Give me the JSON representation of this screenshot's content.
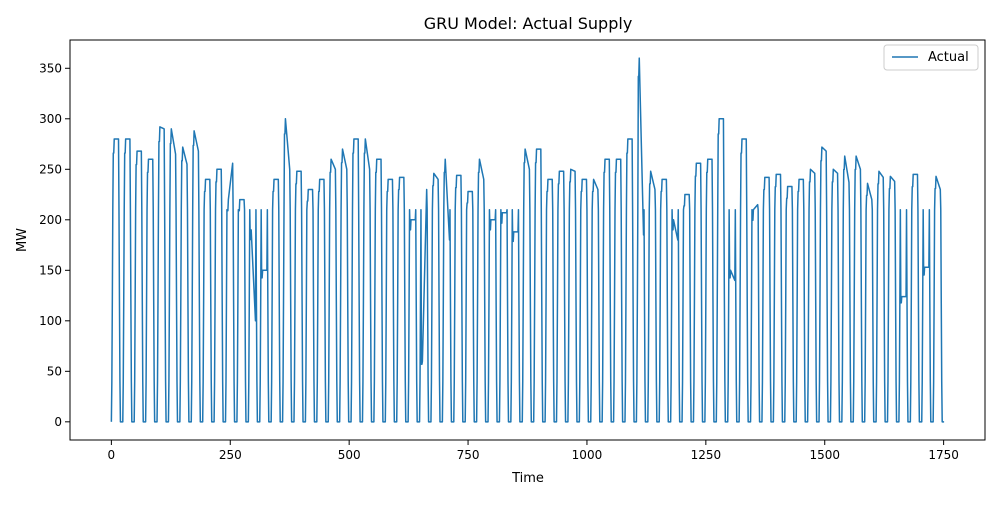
{
  "chart_data": {
    "type": "line",
    "title": "GRU Model: Actual Supply",
    "xlabel": "Time",
    "ylabel": "MW",
    "xlim": [
      -87,
      1837
    ],
    "ylim": [
      -18,
      378
    ],
    "x_ticks": [
      0,
      250,
      500,
      750,
      1000,
      1250,
      1500,
      1750
    ],
    "y_ticks": [
      0,
      50,
      100,
      150,
      200,
      250,
      300,
      350
    ],
    "grid": false,
    "legend": {
      "placement": "top-right",
      "entries": [
        "Actual"
      ]
    },
    "series": [
      {
        "name": "Actual",
        "color": "#1f77b4",
        "daily_pattern": {
          "period": 24,
          "ramp_up": [
            0,
            40,
            120,
            210
          ],
          "plateau_start": 6,
          "plateau_end": 15,
          "ramp_down": [
            210,
            120,
            40,
            0
          ],
          "night_value": 0
        },
        "daily_peaks": [
          [
            280,
            280
          ],
          [
            280,
            280
          ],
          [
            268,
            268
          ],
          [
            260,
            260
          ],
          [
            292,
            290
          ],
          [
            290,
            265
          ],
          [
            272,
            255
          ],
          [
            288,
            268
          ],
          [
            240,
            240
          ],
          [
            250,
            250
          ],
          [
            220,
            256
          ],
          [
            220,
            220
          ],
          [
            190,
            100
          ],
          [
            150,
            150
          ],
          [
            240,
            240
          ],
          [
            300,
            250
          ],
          [
            248,
            248
          ],
          [
            230,
            230
          ],
          [
            240,
            240
          ],
          [
            260,
            250
          ],
          [
            270,
            250
          ],
          [
            280,
            280
          ],
          [
            280,
            250
          ],
          [
            260,
            260
          ],
          [
            240,
            240
          ],
          [
            242,
            242
          ],
          [
            200,
            200
          ],
          [
            60,
            230
          ],
          [
            246,
            240
          ],
          [
            260,
            180
          ],
          [
            244,
            244
          ],
          [
            228,
            228
          ],
          [
            260,
            240
          ],
          [
            200,
            200
          ],
          [
            207,
            207
          ],
          [
            188,
            188
          ],
          [
            270,
            250
          ],
          [
            270,
            270
          ],
          [
            240,
            240
          ],
          [
            248,
            248
          ],
          [
            250,
            248
          ],
          [
            240,
            240
          ],
          [
            240,
            230
          ],
          [
            260,
            260
          ],
          [
            260,
            260
          ],
          [
            280,
            280
          ],
          [
            360,
            185
          ],
          [
            248,
            230
          ],
          [
            240,
            240
          ],
          [
            200,
            180
          ],
          [
            225,
            225
          ],
          [
            256,
            256
          ],
          [
            260,
            260
          ],
          [
            300,
            300
          ],
          [
            150,
            140
          ],
          [
            280,
            280
          ],
          [
            210,
            215
          ],
          [
            242,
            242
          ],
          [
            245,
            245
          ],
          [
            233,
            233
          ],
          [
            240,
            240
          ],
          [
            250,
            246
          ],
          [
            272,
            268
          ],
          [
            250,
            246
          ],
          [
            263,
            237
          ],
          [
            263,
            250
          ],
          [
            236,
            220
          ],
          [
            248,
            242
          ],
          [
            243,
            238
          ],
          [
            124,
            124
          ],
          [
            245,
            245
          ],
          [
            153,
            153
          ],
          [
            243,
            230
          ]
        ]
      }
    ]
  }
}
